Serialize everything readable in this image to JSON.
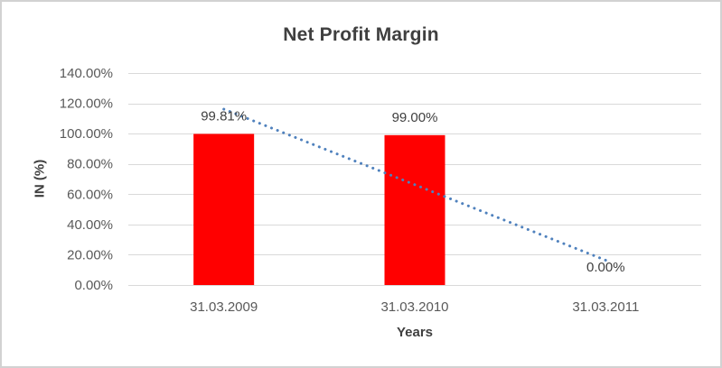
{
  "frame": {
    "background": "#FFFFFF",
    "border_color": "#D2D2D2"
  },
  "chart_data": {
    "type": "bar",
    "title": "Net Profit Margin",
    "xlabel": "Years",
    "ylabel": "IN (%)",
    "categories": [
      "31.03.2009",
      "31.03.2010",
      "31.03.2011"
    ],
    "series": [
      {
        "name": "Net Profit Margin",
        "color": "#FF0000",
        "values": [
          99.81,
          99.0,
          0.0
        ],
        "data_labels": [
          "99.81%",
          "99.00%",
          "0.00%"
        ]
      }
    ],
    "trendline": {
      "type": "linear",
      "style": "dotted",
      "color": "#4F81BD"
    },
    "y_axis": {
      "min": 0,
      "max": 140,
      "tick_values": [
        0,
        20,
        40,
        60,
        80,
        100,
        120,
        140
      ],
      "tick_labels": [
        "0.00%",
        "20.00%",
        "40.00%",
        "60.00%",
        "80.00%",
        "100.00%",
        "120.00%",
        "140.00%"
      ]
    },
    "grid": true,
    "legend": "none",
    "colors": {
      "gridline": "#D9D9D9",
      "tick_text": "#595959",
      "data_label_text": "#404040",
      "title_text": "#3F3F3F"
    }
  }
}
